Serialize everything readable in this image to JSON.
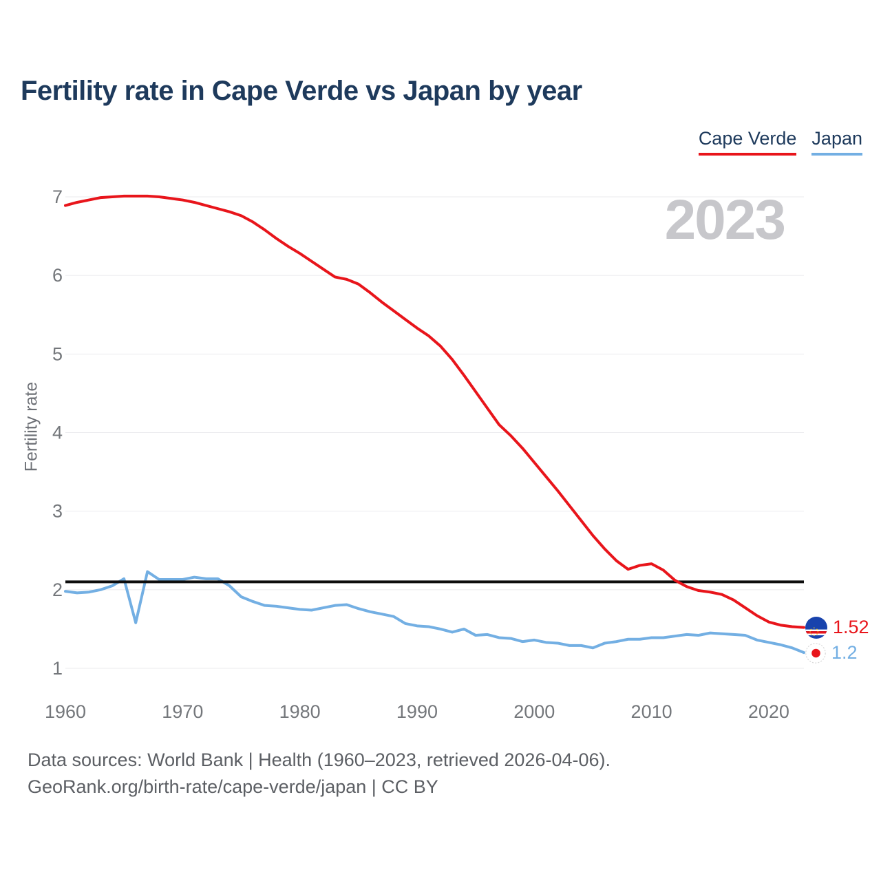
{
  "title": "Fertility rate in Cape Verde vs Japan by year",
  "watermark": "2023",
  "legend": {
    "items": [
      {
        "label": "Cape Verde",
        "color": "#e8151b"
      },
      {
        "label": "Japan",
        "color": "#73afe3"
      }
    ]
  },
  "end_labels": [
    {
      "country": "Cape Verde",
      "value": "1.52",
      "color": "#e8151b",
      "icon": "cape-verde-flag-icon"
    },
    {
      "country": "Japan",
      "value": "1.2",
      "color": "#73afe3",
      "icon": "japan-flag-icon"
    }
  ],
  "footer": {
    "line1": "Data sources: World Bank | Health (1960–2023, retrieved 2026-04-06).",
    "line2": "GeoRank.org/birth-rate/cape-verde/japan | CC BY"
  },
  "colors": {
    "cape_verde": "#e8151b",
    "japan": "#73afe3",
    "replacement_line": "#0d0d0d",
    "grid": "#ebebee",
    "axis_text": "#74777b",
    "watermark": "#c7c7cb",
    "title": "#1e3a5c",
    "footer_text": "#5c5f64"
  },
  "chart_data": {
    "type": "line",
    "title": "Fertility rate in Cape Verde vs Japan by year",
    "xlabel": "",
    "ylabel": "Fertility rate",
    "ylim": [
      1,
      7
    ],
    "yticks": [
      1,
      2,
      3,
      4,
      5,
      6,
      7
    ],
    "xticks": [
      1960,
      1970,
      1980,
      1990,
      2000,
      2010,
      2020
    ],
    "grid": true,
    "legend_position": "top-right",
    "reference_line": {
      "value": 2.1,
      "label": "replacement-rate"
    },
    "x": [
      1960,
      1961,
      1962,
      1963,
      1964,
      1965,
      1966,
      1967,
      1968,
      1969,
      1970,
      1971,
      1972,
      1973,
      1974,
      1975,
      1976,
      1977,
      1978,
      1979,
      1980,
      1981,
      1982,
      1983,
      1984,
      1985,
      1986,
      1987,
      1988,
      1989,
      1990,
      1991,
      1992,
      1993,
      1994,
      1995,
      1996,
      1997,
      1998,
      1999,
      2000,
      2001,
      2002,
      2003,
      2004,
      2005,
      2006,
      2007,
      2008,
      2009,
      2010,
      2011,
      2012,
      2013,
      2014,
      2015,
      2016,
      2017,
      2018,
      2019,
      2020,
      2021,
      2022,
      2023
    ],
    "series": [
      {
        "name": "Cape Verde",
        "color": "#e8151b",
        "values": [
          6.89,
          6.93,
          6.96,
          6.99,
          7.0,
          7.01,
          7.01,
          7.01,
          7.0,
          6.98,
          6.96,
          6.93,
          6.89,
          6.85,
          6.81,
          6.76,
          6.68,
          6.58,
          6.47,
          6.37,
          6.28,
          6.18,
          6.08,
          5.98,
          5.95,
          5.89,
          5.78,
          5.66,
          5.55,
          5.44,
          5.33,
          5.23,
          5.1,
          4.93,
          4.73,
          4.52,
          4.31,
          4.1,
          3.96,
          3.8,
          3.62,
          3.44,
          3.26,
          3.07,
          2.88,
          2.69,
          2.52,
          2.37,
          2.26,
          2.31,
          2.33,
          2.25,
          2.12,
          2.04,
          1.99,
          1.97,
          1.94,
          1.87,
          1.77,
          1.67,
          1.59,
          1.55,
          1.53,
          1.52
        ]
      },
      {
        "name": "Japan",
        "color": "#73afe3",
        "values": [
          1.98,
          1.96,
          1.97,
          2.0,
          2.05,
          2.14,
          1.58,
          2.23,
          2.13,
          2.13,
          2.13,
          2.16,
          2.14,
          2.14,
          2.05,
          1.91,
          1.85,
          1.8,
          1.79,
          1.77,
          1.75,
          1.74,
          1.77,
          1.8,
          1.81,
          1.76,
          1.72,
          1.69,
          1.66,
          1.57,
          1.54,
          1.53,
          1.5,
          1.46,
          1.5,
          1.42,
          1.43,
          1.39,
          1.38,
          1.34,
          1.36,
          1.33,
          1.32,
          1.29,
          1.29,
          1.26,
          1.32,
          1.34,
          1.37,
          1.37,
          1.39,
          1.39,
          1.41,
          1.43,
          1.42,
          1.45,
          1.44,
          1.43,
          1.42,
          1.36,
          1.33,
          1.3,
          1.26,
          1.2
        ]
      }
    ]
  }
}
